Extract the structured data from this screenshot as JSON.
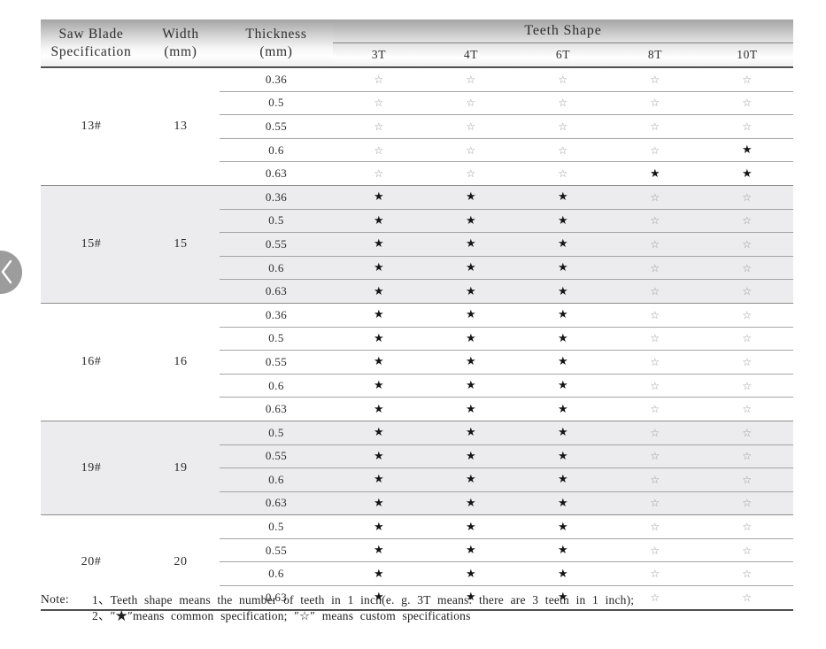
{
  "carousel": {
    "prev_button": "previous"
  },
  "table": {
    "header": {
      "spec_line1": "Saw Blade",
      "spec_line2": "Specification",
      "width_line1": "Width",
      "width_line2": "(mm)",
      "thickness_line1": "Thickness",
      "thickness_line2": "(mm)",
      "teeth_shape": "Teeth Shape",
      "teeth_cols": [
        "3T",
        "4T",
        "6T",
        "8T",
        "10T"
      ]
    },
    "symbols": {
      "common": "★",
      "custom": "☆"
    },
    "colors": {
      "common_star": "#151515",
      "custom_star": "#94949a",
      "shaded_band": "#ececee",
      "header_dark_line": "#4f4f4f"
    },
    "groups": [
      {
        "spec": "13#",
        "width": "13",
        "shaded": false,
        "rows": [
          {
            "thickness": "0.36",
            "marks": [
              "custom",
              "custom",
              "custom",
              "custom",
              "custom"
            ]
          },
          {
            "thickness": "0.5",
            "marks": [
              "custom",
              "custom",
              "custom",
              "custom",
              "custom"
            ]
          },
          {
            "thickness": "0.55",
            "marks": [
              "custom",
              "custom",
              "custom",
              "custom",
              "custom"
            ]
          },
          {
            "thickness": "0.6",
            "marks": [
              "custom",
              "custom",
              "custom",
              "custom",
              "common"
            ]
          },
          {
            "thickness": "0.63",
            "marks": [
              "custom",
              "custom",
              "custom",
              "common",
              "common"
            ]
          }
        ]
      },
      {
        "spec": "15#",
        "width": "15",
        "shaded": true,
        "rows": [
          {
            "thickness": "0.36",
            "marks": [
              "common",
              "common",
              "common",
              "custom",
              "custom"
            ]
          },
          {
            "thickness": "0.5",
            "marks": [
              "common",
              "common",
              "common",
              "custom",
              "custom"
            ]
          },
          {
            "thickness": "0.55",
            "marks": [
              "common",
              "common",
              "common",
              "custom",
              "custom"
            ]
          },
          {
            "thickness": "0.6",
            "marks": [
              "common",
              "common",
              "common",
              "custom",
              "custom"
            ]
          },
          {
            "thickness": "0.63",
            "marks": [
              "common",
              "common",
              "common",
              "custom",
              "custom"
            ]
          }
        ]
      },
      {
        "spec": "16#",
        "width": "16",
        "shaded": false,
        "rows": [
          {
            "thickness": "0.36",
            "marks": [
              "common",
              "common",
              "common",
              "custom",
              "custom"
            ]
          },
          {
            "thickness": "0.5",
            "marks": [
              "common",
              "common",
              "common",
              "custom",
              "custom"
            ]
          },
          {
            "thickness": "0.55",
            "marks": [
              "common",
              "common",
              "common",
              "custom",
              "custom"
            ]
          },
          {
            "thickness": "0.6",
            "marks": [
              "common",
              "common",
              "common",
              "custom",
              "custom"
            ]
          },
          {
            "thickness": "0.63",
            "marks": [
              "common",
              "common",
              "common",
              "custom",
              "custom"
            ]
          }
        ]
      },
      {
        "spec": "19#",
        "width": "19",
        "shaded": true,
        "rows": [
          {
            "thickness": "0.5",
            "marks": [
              "common",
              "common",
              "common",
              "custom",
              "custom"
            ]
          },
          {
            "thickness": "0.55",
            "marks": [
              "common",
              "common",
              "common",
              "custom",
              "custom"
            ]
          },
          {
            "thickness": "0.6",
            "marks": [
              "common",
              "common",
              "common",
              "custom",
              "custom"
            ]
          },
          {
            "thickness": "0.63",
            "marks": [
              "common",
              "common",
              "common",
              "custom",
              "custom"
            ]
          }
        ]
      },
      {
        "spec": "20#",
        "width": "20",
        "shaded": false,
        "rows": [
          {
            "thickness": "0.5",
            "marks": [
              "common",
              "common",
              "common",
              "custom",
              "custom"
            ]
          },
          {
            "thickness": "0.55",
            "marks": [
              "common",
              "common",
              "common",
              "custom",
              "custom"
            ]
          },
          {
            "thickness": "0.6",
            "marks": [
              "common",
              "common",
              "common",
              "custom",
              "custom"
            ]
          },
          {
            "thickness": "0.63",
            "marks": [
              "common",
              "common",
              "common",
              "custom",
              "custom"
            ]
          }
        ]
      }
    ],
    "note": {
      "label": "Note:",
      "line1": "1、Teeth shape means the number of teeth in 1 inch(e. g.  3T  means: there are 3 teeth in 1 inch);",
      "line2": "2、″★″means common specification; ″☆″ means custom specifications"
    }
  }
}
